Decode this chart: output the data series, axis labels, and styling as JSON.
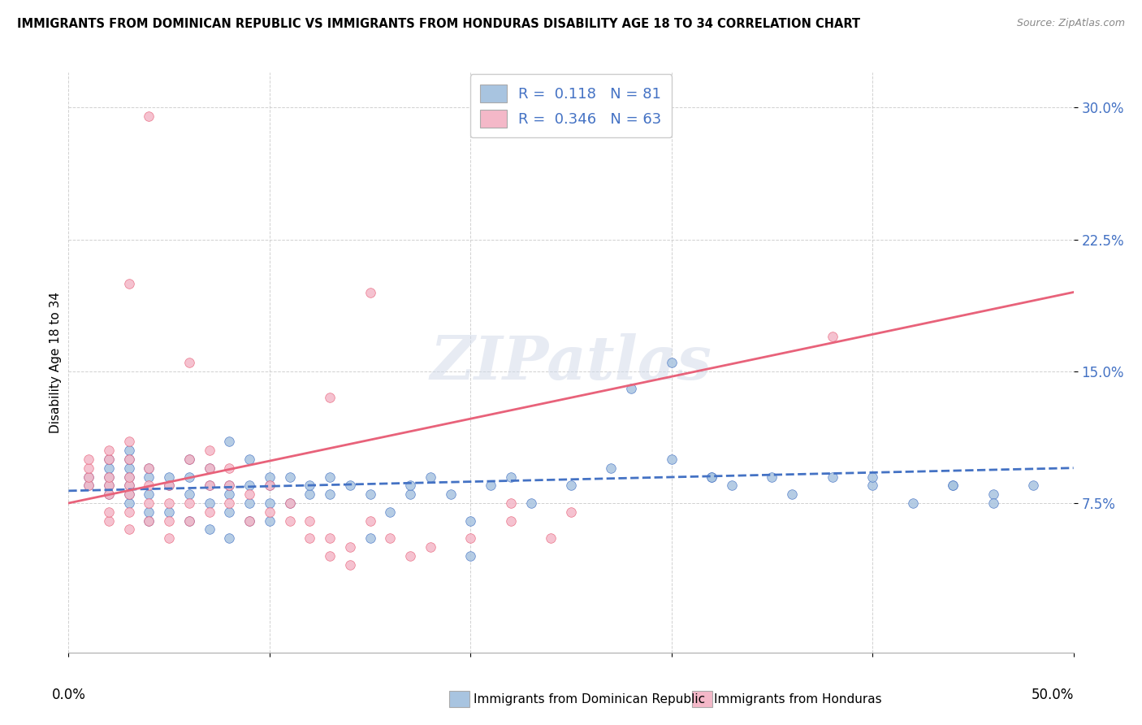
{
  "title": "IMMIGRANTS FROM DOMINICAN REPUBLIC VS IMMIGRANTS FROM HONDURAS DISABILITY AGE 18 TO 34 CORRELATION CHART",
  "source": "Source: ZipAtlas.com",
  "ylabel": "Disability Age 18 to 34",
  "xlim": [
    0.0,
    0.5
  ],
  "ylim": [
    -0.01,
    0.32
  ],
  "legend1_label": "R =  0.118   N = 81",
  "legend2_label": "R =  0.346   N = 63",
  "color_dr": "#a8c4e0",
  "color_hn": "#f4b8c8",
  "line_color_dr": "#4472c4",
  "line_color_hn": "#e8627a",
  "watermark": "ZIPatlas",
  "dr_scatter_x": [
    0.01,
    0.01,
    0.02,
    0.02,
    0.02,
    0.02,
    0.02,
    0.03,
    0.03,
    0.03,
    0.03,
    0.03,
    0.03,
    0.03,
    0.04,
    0.04,
    0.04,
    0.04,
    0.04,
    0.05,
    0.05,
    0.05,
    0.06,
    0.06,
    0.06,
    0.06,
    0.07,
    0.07,
    0.07,
    0.07,
    0.08,
    0.08,
    0.08,
    0.08,
    0.08,
    0.09,
    0.09,
    0.09,
    0.09,
    0.1,
    0.1,
    0.1,
    0.1,
    0.11,
    0.11,
    0.12,
    0.12,
    0.13,
    0.13,
    0.14,
    0.15,
    0.15,
    0.16,
    0.17,
    0.17,
    0.18,
    0.19,
    0.2,
    0.2,
    0.21,
    0.22,
    0.23,
    0.25,
    0.27,
    0.28,
    0.3,
    0.32,
    0.33,
    0.35,
    0.36,
    0.38,
    0.4,
    0.42,
    0.44,
    0.46,
    0.3,
    0.32,
    0.4,
    0.44,
    0.46,
    0.48
  ],
  "dr_scatter_y": [
    0.085,
    0.09,
    0.08,
    0.085,
    0.09,
    0.095,
    0.1,
    0.075,
    0.08,
    0.085,
    0.09,
    0.095,
    0.1,
    0.105,
    0.065,
    0.07,
    0.08,
    0.09,
    0.095,
    0.07,
    0.085,
    0.09,
    0.065,
    0.08,
    0.09,
    0.1,
    0.06,
    0.075,
    0.085,
    0.095,
    0.055,
    0.07,
    0.08,
    0.085,
    0.11,
    0.065,
    0.075,
    0.085,
    0.1,
    0.065,
    0.075,
    0.085,
    0.09,
    0.075,
    0.09,
    0.08,
    0.085,
    0.08,
    0.09,
    0.085,
    0.055,
    0.08,
    0.07,
    0.08,
    0.085,
    0.09,
    0.08,
    0.045,
    0.065,
    0.085,
    0.09,
    0.075,
    0.085,
    0.095,
    0.14,
    0.1,
    0.09,
    0.085,
    0.09,
    0.08,
    0.09,
    0.085,
    0.075,
    0.085,
    0.08,
    0.155,
    0.09,
    0.09,
    0.085,
    0.075,
    0.085
  ],
  "hn_scatter_x": [
    0.01,
    0.01,
    0.01,
    0.01,
    0.02,
    0.02,
    0.02,
    0.02,
    0.02,
    0.02,
    0.02,
    0.03,
    0.03,
    0.03,
    0.03,
    0.03,
    0.03,
    0.03,
    0.04,
    0.04,
    0.04,
    0.04,
    0.05,
    0.05,
    0.05,
    0.05,
    0.06,
    0.06,
    0.06,
    0.07,
    0.07,
    0.07,
    0.07,
    0.08,
    0.08,
    0.08,
    0.09,
    0.09,
    0.1,
    0.1,
    0.11,
    0.11,
    0.12,
    0.12,
    0.13,
    0.13,
    0.14,
    0.14,
    0.15,
    0.16,
    0.17,
    0.18,
    0.2,
    0.22,
    0.22,
    0.24,
    0.25,
    0.13,
    0.06,
    0.38,
    0.15,
    0.04,
    0.03
  ],
  "hn_scatter_y": [
    0.085,
    0.09,
    0.095,
    0.1,
    0.065,
    0.07,
    0.08,
    0.085,
    0.09,
    0.1,
    0.105,
    0.06,
    0.07,
    0.08,
    0.085,
    0.09,
    0.1,
    0.11,
    0.065,
    0.075,
    0.085,
    0.095,
    0.055,
    0.065,
    0.075,
    0.085,
    0.065,
    0.075,
    0.1,
    0.07,
    0.085,
    0.095,
    0.105,
    0.075,
    0.085,
    0.095,
    0.065,
    0.08,
    0.07,
    0.085,
    0.065,
    0.075,
    0.055,
    0.065,
    0.045,
    0.055,
    0.04,
    0.05,
    0.065,
    0.055,
    0.045,
    0.05,
    0.055,
    0.065,
    0.075,
    0.055,
    0.07,
    0.135,
    0.155,
    0.17,
    0.195,
    0.295,
    0.2
  ],
  "dr_trendline_x": [
    0.0,
    0.5
  ],
  "dr_trendline_y": [
    0.082,
    0.095
  ],
  "hn_trendline_x": [
    0.0,
    0.5
  ],
  "hn_trendline_y": [
    0.075,
    0.195
  ],
  "ytick_vals": [
    0.075,
    0.15,
    0.225,
    0.3
  ],
  "ytick_labels": [
    "7.5%",
    "15.0%",
    "22.5%",
    "30.0%"
  ]
}
